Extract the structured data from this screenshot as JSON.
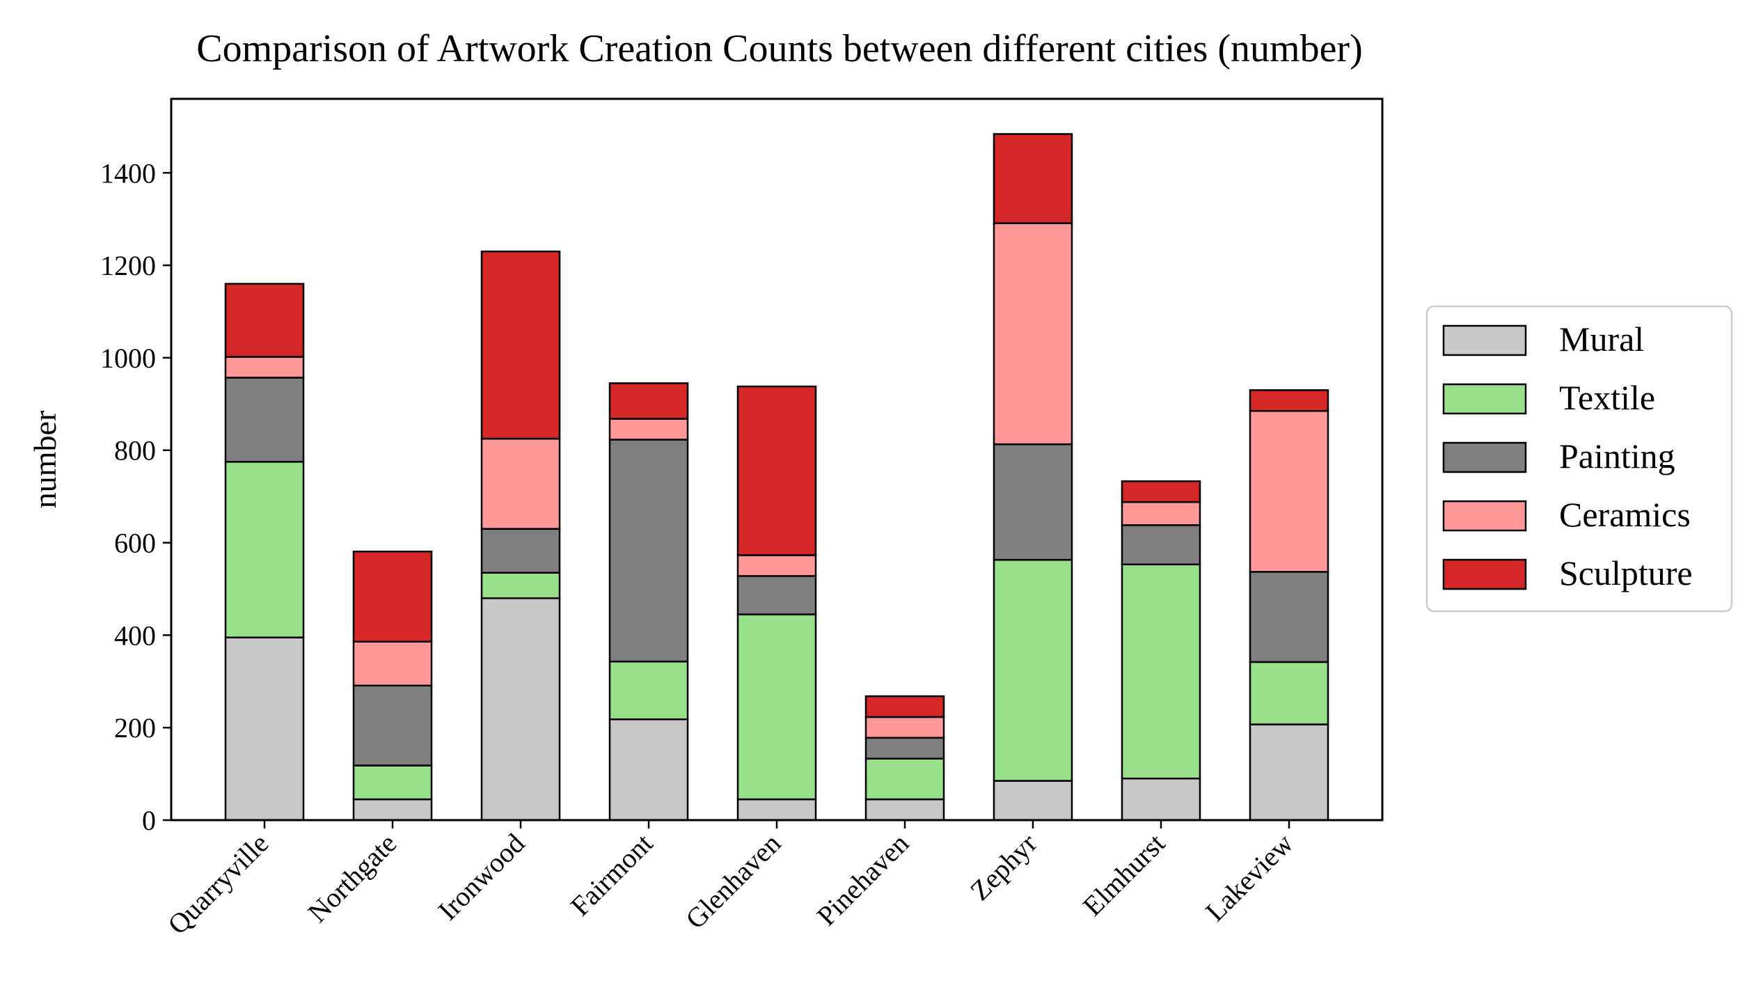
{
  "chart_data": {
    "type": "bar",
    "stacked": true,
    "title": "Comparison of Artwork Creation Counts between different cities (number)",
    "xlabel": "",
    "ylabel": "number",
    "ylim": [
      0,
      1560
    ],
    "yticks": [
      0,
      200,
      400,
      600,
      800,
      1000,
      1200,
      1400
    ],
    "categories": [
      "Quarryville",
      "Northgate",
      "Ironwood",
      "Fairmont",
      "Glenhaven",
      "Pinehaven",
      "Zephyr",
      "Elmhurst",
      "Lakeview"
    ],
    "series": [
      {
        "name": "Mural",
        "color": "#c8c8c8",
        "values": [
          395,
          45,
          480,
          218,
          45,
          45,
          85,
          90,
          207
        ]
      },
      {
        "name": "Textile",
        "color": "#98df8a",
        "values": [
          380,
          73,
          55,
          125,
          400,
          88,
          478,
          463,
          135
        ]
      },
      {
        "name": "Painting",
        "color": "#7f7f7f",
        "values": [
          182,
          173,
          95,
          480,
          83,
          45,
          250,
          85,
          195
        ]
      },
      {
        "name": "Ceramics",
        "color": "#ff9896",
        "values": [
          45,
          95,
          195,
          45,
          45,
          45,
          478,
          50,
          348
        ]
      },
      {
        "name": "Sculpture",
        "color": "#d62728",
        "values": [
          158,
          195,
          405,
          77,
          365,
          45,
          193,
          45,
          45
        ]
      }
    ],
    "legend": {
      "placement": "right"
    },
    "grid": false
  }
}
